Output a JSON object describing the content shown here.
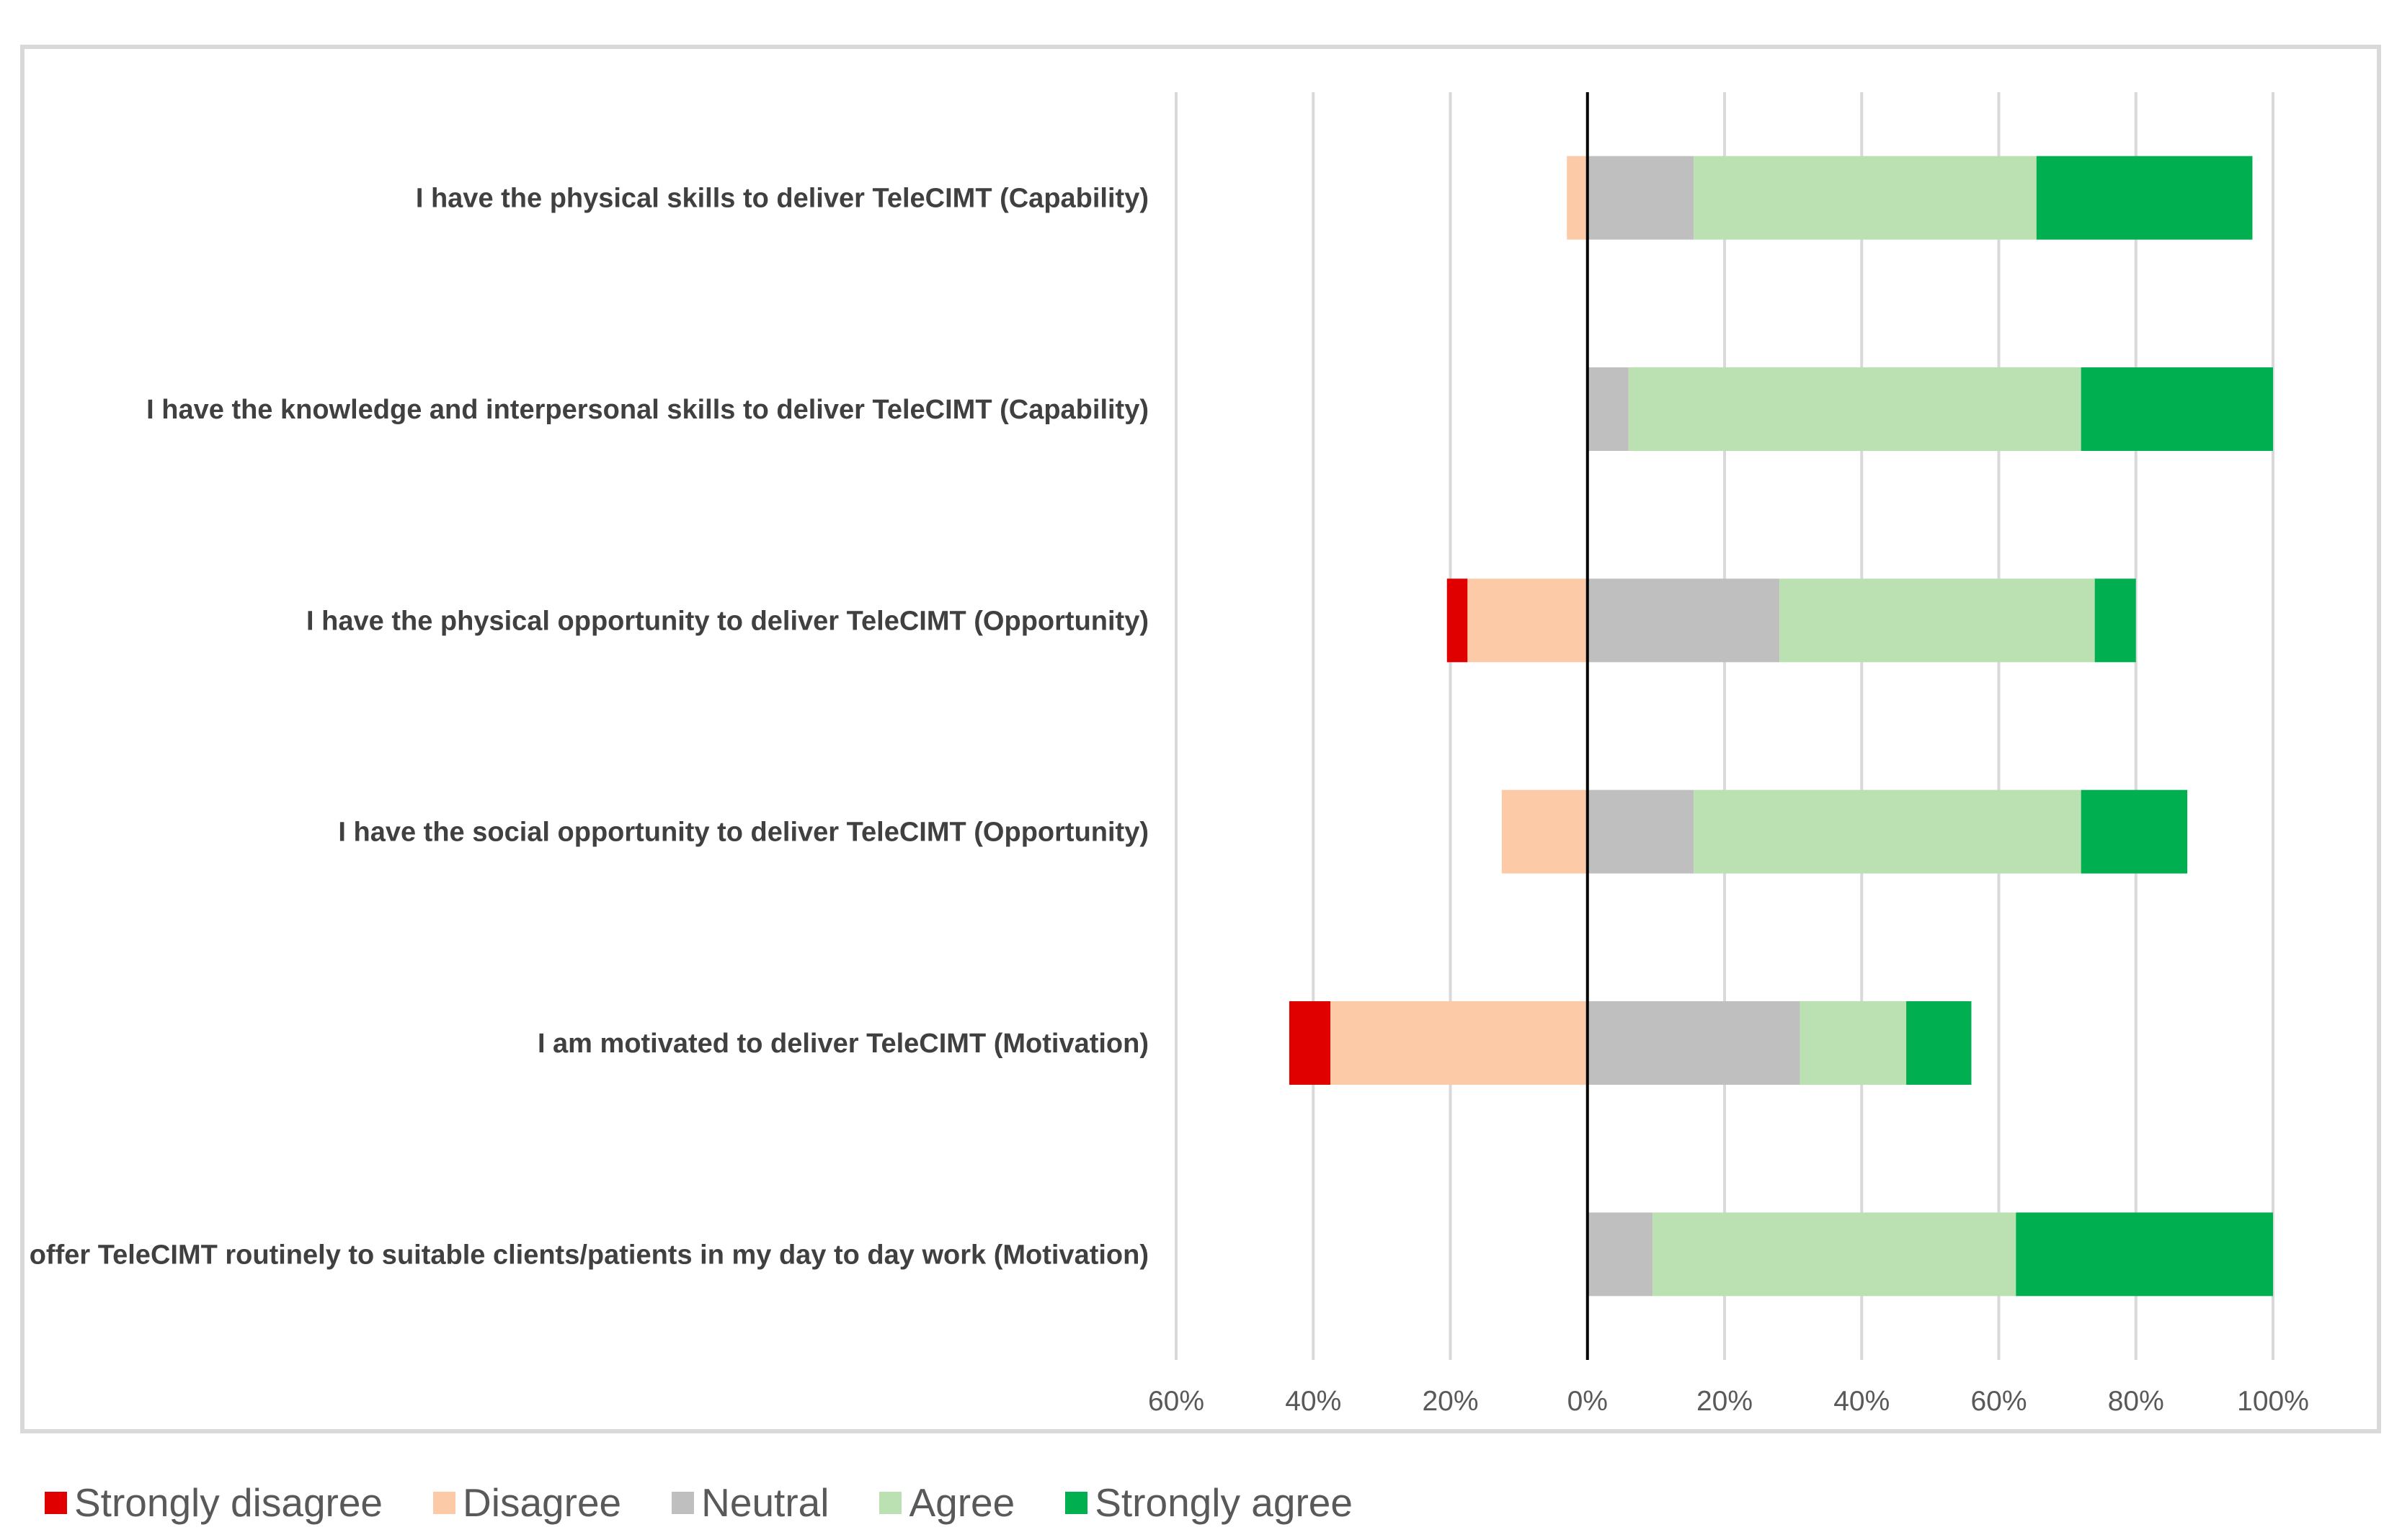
{
  "chart_data": {
    "type": "bar",
    "orientation": "horizontal",
    "stacked": "diverging",
    "title": "",
    "xlabel": "",
    "ylabel": "",
    "xlim": [
      -60,
      100
    ],
    "x_ticks": [
      -60,
      -40,
      -20,
      0,
      20,
      40,
      60,
      80,
      100
    ],
    "x_tick_labels": [
      "60%",
      "40%",
      "20%",
      "0%",
      "20%",
      "40%",
      "60%",
      "80%",
      "100%"
    ],
    "grid": true,
    "legend_position": "bottom",
    "categories": [
      "I have the physical skills  to deliver TeleCIMT (Capability)",
      "I have the knowledge and interpersonal skills to deliver TeleCIMT (Capability)",
      "I have the physical opportunity to deliver TeleCIMT (Opportunity)",
      "I have the social opportunity to deliver TeleCIMT (Opportunity)",
      "I am motivated to deliver TeleCIMT (Motivation)",
      "I offer TeleCIMT routinely to suitable clients/patients in my day to day work (Motivation)"
    ],
    "series": [
      {
        "name": "Strongly disagree",
        "direction": "negative",
        "color": "#e00000",
        "values": [
          0,
          0,
          3,
          0,
          6,
          0
        ]
      },
      {
        "name": "Disagree",
        "direction": "negative",
        "color": "#fdcaa8",
        "values": [
          3,
          0,
          17.5,
          12.5,
          37.5,
          0
        ]
      },
      {
        "name": "Neutral",
        "direction": "positive",
        "color": "#bfbfbf",
        "values": [
          15.5,
          6,
          28,
          15.5,
          31,
          9.5
        ]
      },
      {
        "name": "Agree",
        "direction": "positive",
        "color": "#bbe1b2",
        "values": [
          50,
          66,
          46,
          56.5,
          15.5,
          53
        ]
      },
      {
        "name": "Strongly agree",
        "direction": "positive",
        "color": "#00b050",
        "values": [
          31.5,
          28,
          6,
          15.5,
          9.5,
          37.5
        ]
      }
    ]
  }
}
